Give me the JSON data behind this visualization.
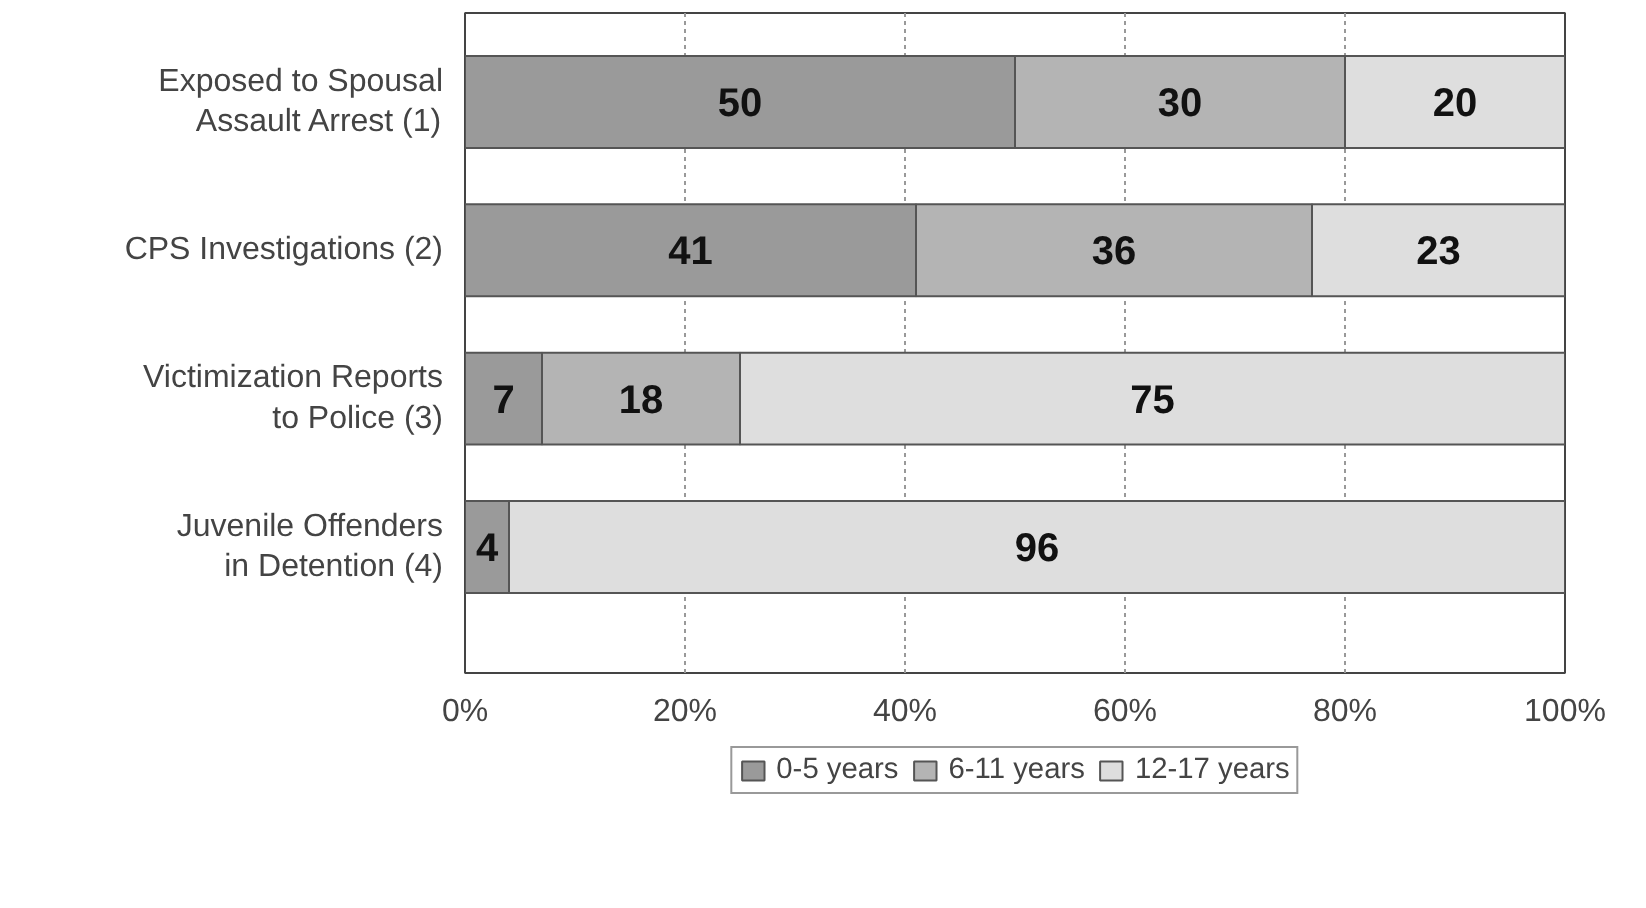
{
  "chart_data": {
    "type": "bar",
    "orientation": "horizontal",
    "stacked": true,
    "data_labels": true,
    "categories": [
      "Exposed to Spousal Assault Arrest (1)",
      "CPS Investigations (2)",
      "Victimization Reports to Police (3)",
      "Juvenile Offenders in Detention (4)"
    ],
    "series": [
      {
        "name": "0-5 years",
        "color": "#9a9a9a",
        "values": [
          50,
          41,
          7,
          4
        ]
      },
      {
        "name": "6-11 years",
        "color": "#b4b4b4",
        "values": [
          30,
          36,
          18,
          null
        ]
      },
      {
        "name": "12-17 years",
        "color": "#dedede",
        "values": [
          20,
          23,
          75,
          96
        ]
      }
    ],
    "xlim": [
      0,
      100
    ],
    "xticks": [
      {
        "value": 0,
        "label": "0%"
      },
      {
        "value": 20,
        "label": "20%"
      },
      {
        "value": 40,
        "label": "40%"
      },
      {
        "value": 60,
        "label": "60%"
      },
      {
        "value": 80,
        "label": "80%"
      },
      {
        "value": 100,
        "label": "100%"
      }
    ],
    "grid": "x",
    "legend": "bottom"
  }
}
